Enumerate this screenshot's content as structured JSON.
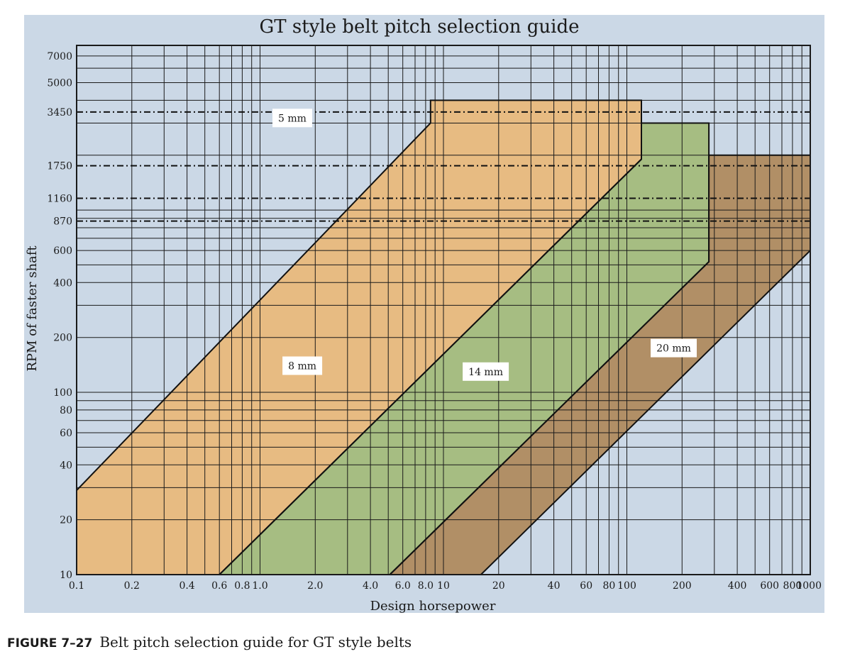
{
  "caption": {
    "number": "FIGURE 7–27",
    "text": "Belt pitch selection guide for GT style belts"
  },
  "colors": {
    "background": "#cbd8e6",
    "pitch_5mm": "#e7bb82",
    "pitch_8mm": "#e7bb82",
    "pitch_14mm": "#a6bd82",
    "pitch_20mm": "#b18f66",
    "grid": "#1a1a1a"
  },
  "chart_data": {
    "type": "area",
    "title": "GT style belt pitch selection guide",
    "xlabel": "Design horsepower",
    "ylabel": "RPM of faster shaft",
    "x_scale": "log",
    "y_scale": "log",
    "xlim": [
      0.1,
      1000
    ],
    "ylim": [
      10,
      8000
    ],
    "x_ticks": [
      {
        "value": 0.1,
        "label": "0.1"
      },
      {
        "value": 0.2,
        "label": "0.2"
      },
      {
        "value": 0.4,
        "label": "0.4"
      },
      {
        "value": 0.6,
        "label": "0.6"
      },
      {
        "value": 0.8,
        "label": "0.8"
      },
      {
        "value": 1.0,
        "label": "1.0"
      },
      {
        "value": 2.0,
        "label": "2.0"
      },
      {
        "value": 4.0,
        "label": "4.0"
      },
      {
        "value": 6.0,
        "label": "6.0"
      },
      {
        "value": 8.0,
        "label": "8.0"
      },
      {
        "value": 10,
        "label": "10"
      },
      {
        "value": 20,
        "label": "20"
      },
      {
        "value": 40,
        "label": "40"
      },
      {
        "value": 60,
        "label": "60"
      },
      {
        "value": 80,
        "label": "80"
      },
      {
        "value": 100,
        "label": "100"
      },
      {
        "value": 200,
        "label": "200"
      },
      {
        "value": 400,
        "label": "400"
      },
      {
        "value": 600,
        "label": "600"
      },
      {
        "value": 800,
        "label": "800"
      },
      {
        "value": 1000,
        "label": "1000"
      }
    ],
    "y_ticks": [
      {
        "value": 10,
        "label": "10"
      },
      {
        "value": 20,
        "label": "20"
      },
      {
        "value": 40,
        "label": "40"
      },
      {
        "value": 60,
        "label": "60"
      },
      {
        "value": 80,
        "label": "80"
      },
      {
        "value": 100,
        "label": "100"
      },
      {
        "value": 200,
        "label": "200"
      },
      {
        "value": 400,
        "label": "400"
      },
      {
        "value": 600,
        "label": "600"
      },
      {
        "value": 870,
        "label": "870"
      },
      {
        "value": 1160,
        "label": "1160"
      },
      {
        "value": 1750,
        "label": "1750"
      },
      {
        "value": 3450,
        "label": "3450"
      },
      {
        "value": 5000,
        "label": "5000"
      },
      {
        "value": 7000,
        "label": "7000"
      }
    ],
    "x_grid": [
      0.1,
      0.2,
      0.3,
      0.4,
      0.5,
      0.6,
      0.7,
      0.8,
      0.9,
      1,
      2,
      3,
      4,
      5,
      6,
      7,
      8,
      9,
      10,
      20,
      30,
      40,
      50,
      60,
      70,
      80,
      90,
      100,
      200,
      300,
      400,
      500,
      600,
      700,
      800,
      900,
      1000
    ],
    "y_grid": [
      10,
      20,
      30,
      40,
      50,
      60,
      70,
      80,
      90,
      100,
      200,
      300,
      400,
      500,
      600,
      700,
      800,
      900,
      1000,
      2000,
      3000,
      4000,
      5000,
      6000,
      7000,
      8000
    ],
    "reference_rpm_lines": [
      870,
      1160,
      1750,
      3450
    ],
    "grid": true,
    "legend": "none",
    "regions": [
      {
        "name": "5 mm / 8 mm",
        "color_key": "pitch_8mm",
        "points": [
          [
            0.1,
            10
          ],
          [
            0.1,
            29
          ],
          [
            8.5,
            3000
          ],
          [
            8.5,
            4000
          ],
          [
            120,
            4000
          ],
          [
            120,
            1900
          ],
          [
            0.6,
            10
          ]
        ]
      },
      {
        "name": "14 mm",
        "color_key": "pitch_14mm",
        "points": [
          [
            0.6,
            10
          ],
          [
            120,
            1900
          ],
          [
            120,
            3000
          ],
          [
            280,
            3000
          ],
          [
            280,
            520
          ],
          [
            5.1,
            10
          ]
        ]
      },
      {
        "name": "20 mm",
        "color_key": "pitch_20mm",
        "points": [
          [
            5.1,
            10
          ],
          [
            280,
            520
          ],
          [
            280,
            2000
          ],
          [
            1000,
            2000
          ],
          [
            1000,
            600
          ],
          [
            16,
            10
          ]
        ]
      }
    ],
    "annotations": [
      {
        "text": "5 mm",
        "x": 1.5,
        "y": 3200
      },
      {
        "text": "8 mm",
        "x": 1.7,
        "y": 140
      },
      {
        "text": "14 mm",
        "x": 17,
        "y": 130
      },
      {
        "text": "20 mm",
        "x": 180,
        "y": 175
      }
    ]
  }
}
